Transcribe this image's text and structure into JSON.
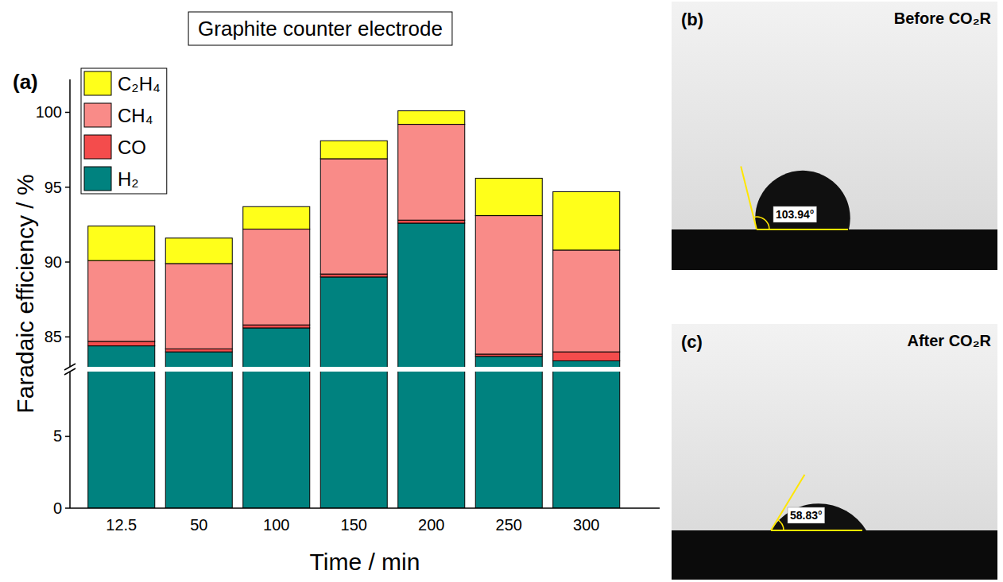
{
  "chart_data": {
    "type": "bar",
    "title": "Graphite counter electrode",
    "panel_label": "(a)",
    "x_label": "Time / min",
    "y_label": "Faradaic efficiency / %",
    "categories": [
      "12.5",
      "50",
      "100",
      "150",
      "200",
      "250",
      "300"
    ],
    "series": [
      {
        "name": "H₂",
        "color": "#00827f",
        "values": [
          84.4,
          84.0,
          85.6,
          89.0,
          92.6,
          83.7,
          83.4
        ]
      },
      {
        "name": "CO",
        "color": "#f44c4c",
        "values": [
          0.3,
          0.2,
          0.2,
          0.2,
          0.2,
          0.15,
          0.6
        ]
      },
      {
        "name": "CH₄",
        "color": "#f98b88",
        "values": [
          5.4,
          5.7,
          6.4,
          7.7,
          6.4,
          9.25,
          6.8
        ]
      },
      {
        "name": "C₂H₄",
        "color": "#ffff1a",
        "values": [
          2.3,
          1.7,
          1.5,
          1.2,
          0.9,
          2.5,
          3.9
        ]
      }
    ],
    "stacked": true,
    "ylim": [
      0,
      102.2
    ],
    "y_break": [
      9.5,
      83
    ],
    "yticks": [
      0,
      5,
      85,
      90,
      95,
      100
    ],
    "grid": false,
    "legend": "top-left"
  },
  "images": [
    {
      "letter": "(b)",
      "caption": "Before CO₂R",
      "contact_angle": {
        "value": 103.94,
        "label": "103.94°"
      }
    },
    {
      "letter": "(c)",
      "caption": "After CO₂R",
      "contact_angle": {
        "value": 58.83,
        "label": "58.83°"
      }
    }
  ]
}
